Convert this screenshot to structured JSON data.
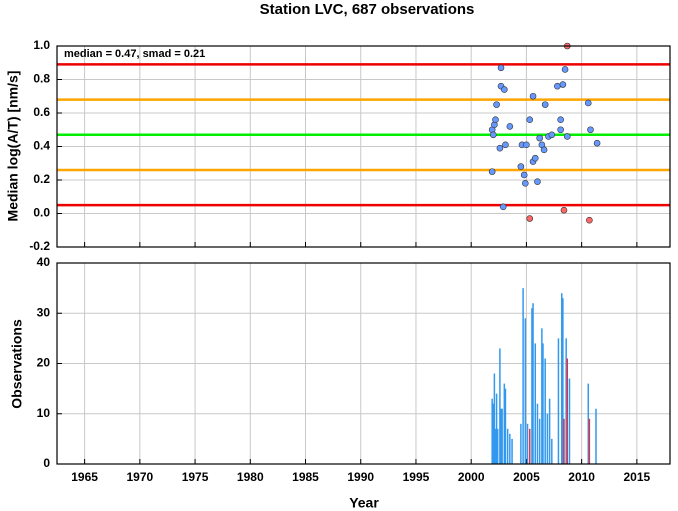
{
  "chart_data": [
    {
      "type": "scatter",
      "title": "Station LVC, 687 observations",
      "ylabel": "Median log(A/T) [nm/s]",
      "annotation": "median = 0.47, smad = 0.21",
      "xlim": [
        1962.5,
        2018
      ],
      "xticks": [
        1965,
        1970,
        1975,
        1980,
        1985,
        1990,
        1995,
        2000,
        2005,
        2010,
        2015
      ],
      "ylim": [
        -0.2,
        1.0
      ],
      "yticks": [
        -0.2,
        {
          "value": 0,
          "label": "0.0"
        },
        0.2,
        0.4,
        0.6,
        0.8,
        {
          "value": 1,
          "label": "1.0"
        }
      ],
      "grid": true,
      "reference_lines": [
        {
          "value": 0.89,
          "color": "#ee0000"
        },
        {
          "value": 0.68,
          "color": "#ffa500"
        },
        {
          "value": 0.47,
          "color": "#00ee00"
        },
        {
          "value": 0.26,
          "color": "#ffa500"
        },
        {
          "value": 0.05,
          "color": "#ee0000"
        }
      ],
      "series": [
        {
          "color": "#6699ff",
          "x": [
            2001.9,
            2001.9,
            2002.1,
            2002.2,
            2002.0,
            2002.3,
            2002.6,
            2002.7,
            2002.7,
            2003.0,
            2003.1,
            2002.9,
            2003.5,
            2004.5,
            2004.6,
            2005.0,
            2004.8,
            2004.9,
            2005.3,
            2005.6,
            2005.6,
            2005.8,
            2006.0,
            2006.2,
            2006.4,
            2006.6,
            2006.7,
            2007.0,
            2007.3,
            2007.8,
            2008.1,
            2008.1,
            2008.3,
            2008.5,
            2008.7,
            2010.6,
            2010.8,
            2011.4
          ],
          "values": [
            0.25,
            0.5,
            0.53,
            0.56,
            0.47,
            0.65,
            0.39,
            0.87,
            0.76,
            0.74,
            0.41,
            0.04,
            0.52,
            0.28,
            0.41,
            0.41,
            0.23,
            0.18,
            0.56,
            0.7,
            0.31,
            0.33,
            0.19,
            0.45,
            0.41,
            0.38,
            0.65,
            0.46,
            0.47,
            0.76,
            0.56,
            0.5,
            0.77,
            0.86,
            0.46,
            0.66,
            0.5,
            0.42
          ]
        },
        {
          "color": "#ff6666",
          "x": [
            2005.3,
            2008.4,
            2008.7,
            2010.7
          ],
          "values": [
            -0.03,
            0.02,
            1.0,
            -0.04
          ]
        }
      ]
    },
    {
      "type": "bar",
      "xlabel": "Year",
      "ylabel": "Observations",
      "xlim": [
        1962.5,
        2018
      ],
      "xticks": [
        1965,
        1970,
        1975,
        1980,
        1985,
        1990,
        1995,
        2000,
        2005,
        2010,
        2015
      ],
      "ylim": [
        0,
        40
      ],
      "yticks": [
        0,
        10,
        20,
        30,
        40
      ],
      "grid": true,
      "series": [
        {
          "color": "#3399ee",
          "x": [
            2001.9,
            2002.0,
            2002.1,
            2002.2,
            2002.3,
            2002.4,
            2002.6,
            2002.7,
            2002.8,
            2003.0,
            2003.1,
            2003.3,
            2003.5,
            2003.7,
            2004.5,
            2004.7,
            2004.9,
            2005.1,
            2005.5,
            2005.6,
            2005.8,
            2006.0,
            2006.2,
            2006.4,
            2006.5,
            2006.7,
            2006.9,
            2007.1,
            2007.3,
            2007.9,
            2008.2,
            2008.3,
            2008.6,
            2008.9,
            2010.6,
            2011.3
          ],
          "values": [
            13,
            12,
            18,
            7,
            14,
            7,
            23,
            11,
            11,
            16,
            15,
            7,
            6,
            5,
            8,
            35,
            29,
            8,
            31,
            32,
            24,
            12,
            9,
            27,
            24,
            21,
            10,
            13,
            5,
            25,
            34,
            33,
            25,
            17,
            16,
            11
          ]
        },
        {
          "color": "#dd3344",
          "x": [
            2005.3,
            2008.4,
            2008.7,
            2010.7
          ],
          "values": [
            7,
            9,
            21,
            9
          ]
        }
      ]
    }
  ]
}
